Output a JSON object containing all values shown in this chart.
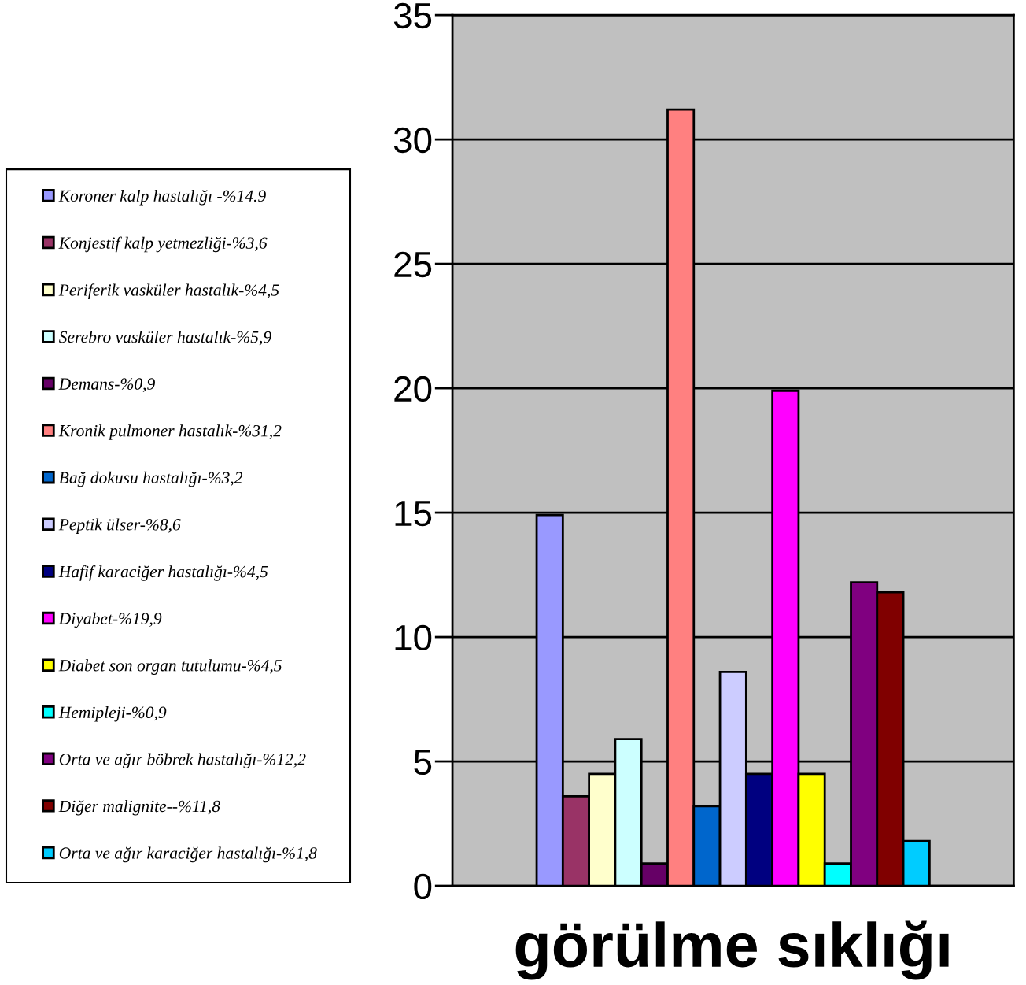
{
  "chart_data": {
    "type": "bar",
    "categories": [
      "görülme sıklığı"
    ],
    "series": [
      {
        "name": "Koroner kalp hastalığı -%14.9",
        "color": "#9999ff",
        "values": [
          14.9
        ]
      },
      {
        "name": "Konjestif kalp yetmezliği-%3,6",
        "color": "#993366",
        "values": [
          3.6
        ]
      },
      {
        "name": "Periferik vasküler hastalık-%4,5",
        "color": "#ffffcc",
        "values": [
          4.5
        ]
      },
      {
        "name": "Serebro vasküler hastalık-%5,9",
        "color": "#ccffff",
        "values": [
          5.9
        ]
      },
      {
        "name": "Demans-%0,9",
        "color": "#660066",
        "values": [
          0.9
        ]
      },
      {
        "name": "Kronik pulmoner hastalık-%31,2",
        "color": "#ff8080",
        "values": [
          31.2
        ]
      },
      {
        "name": "Bağ dokusu hastalığı-%3,2",
        "color": "#0066cc",
        "values": [
          3.2
        ]
      },
      {
        "name": "Peptik ülser-%8,6",
        "color": "#ccccff",
        "values": [
          8.6
        ]
      },
      {
        "name": "Hafif karaciğer hastalığı-%4,5",
        "color": "#000080",
        "values": [
          4.5
        ]
      },
      {
        "name": "Diyabet-%19,9",
        "color": "#ff00ff",
        "values": [
          19.9
        ]
      },
      {
        "name": "Diabet son organ tutulumu-%4,5",
        "color": "#ffff00",
        "values": [
          4.5
        ]
      },
      {
        "name": "Hemipleji-%0,9",
        "color": "#00ffff",
        "values": [
          0.9
        ]
      },
      {
        "name": "Orta ve ağır böbrek hastalığı-%12,2",
        "color": "#800080",
        "values": [
          12.2
        ]
      },
      {
        "name": "Diğer malignite--%11,8",
        "color": "#800000",
        "values": [
          11.8
        ]
      },
      {
        "name": "Orta ve ağır karaciğer hastalığı-%1,8",
        "color": "#00ccff",
        "values": [
          1.8
        ]
      }
    ],
    "ylim": [
      0,
      35
    ],
    "yticks": [
      0,
      5,
      10,
      15,
      20,
      25,
      30,
      35
    ],
    "grid": "y",
    "legend": "left"
  }
}
